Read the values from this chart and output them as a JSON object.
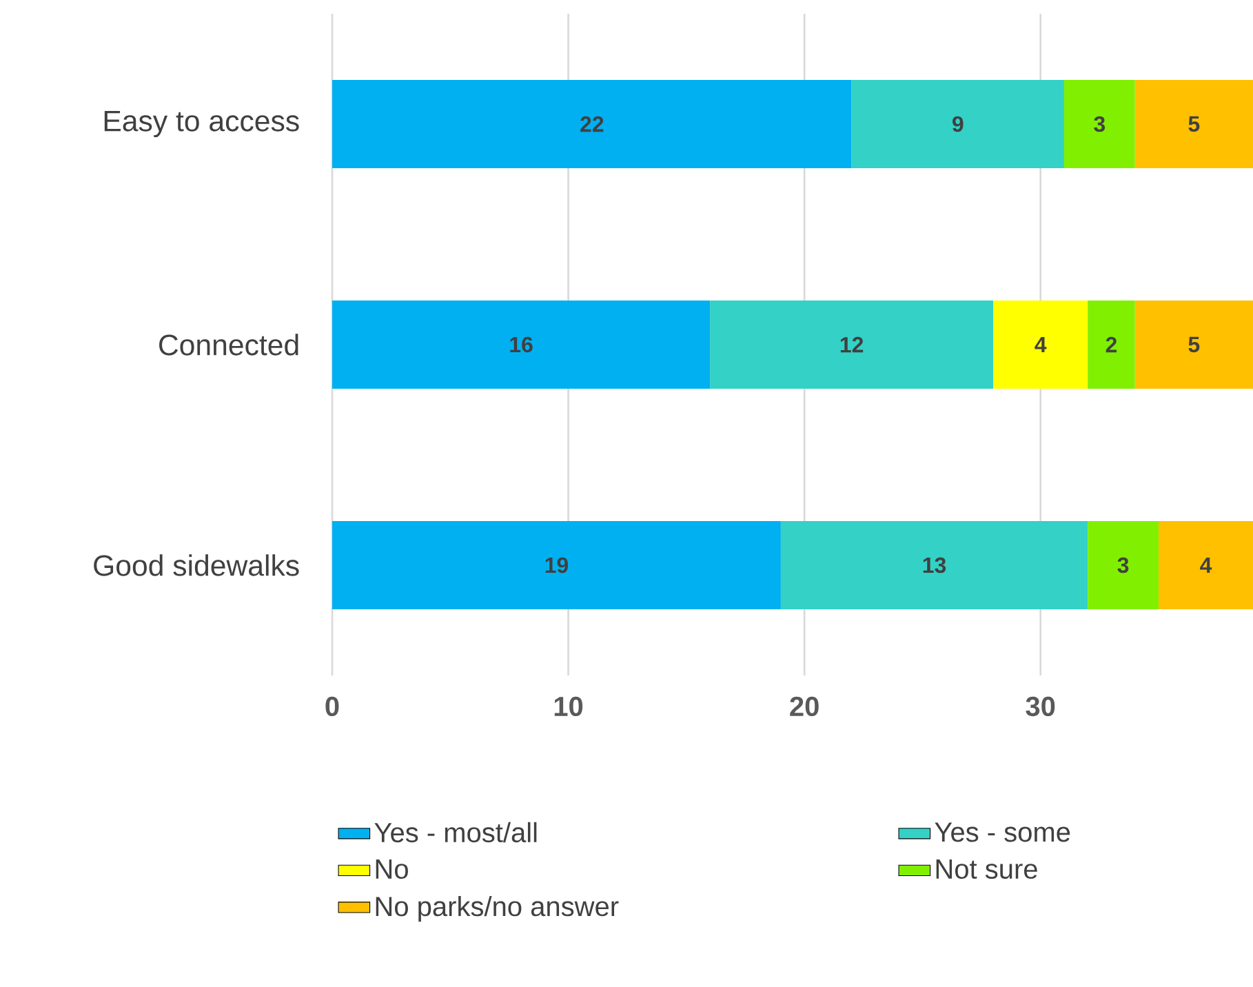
{
  "chart_data": {
    "type": "bar",
    "orientation": "horizontal",
    "stacked": true,
    "categories": [
      "Easy to access",
      "Connected",
      "Good sidewalks"
    ],
    "series": [
      {
        "name": "Yes - most/all",
        "color": "#00b0f0",
        "values": [
          22,
          16,
          19
        ]
      },
      {
        "name": "Yes - some",
        "color": "#33d1c6",
        "values": [
          9,
          12,
          13
        ]
      },
      {
        "name": "No",
        "color": "#ffff00",
        "values": [
          null,
          4,
          null
        ]
      },
      {
        "name": "Not sure",
        "color": "#80f000",
        "values": [
          3,
          2,
          3
        ]
      },
      {
        "name": "No parks/no answer",
        "color": "#ffc000",
        "values": [
          5,
          5,
          4
        ]
      }
    ],
    "xlim": [
      0,
      39
    ],
    "xticks": [
      0,
      10,
      20,
      30
    ],
    "grid": "x",
    "legend": "bottom",
    "data_labels": true
  }
}
